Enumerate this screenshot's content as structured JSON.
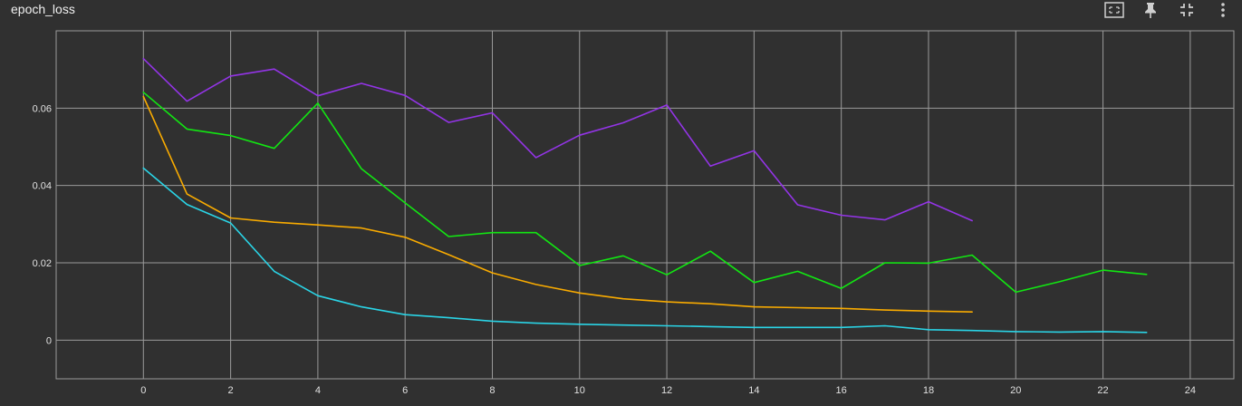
{
  "card": {
    "title": "epoch_loss"
  },
  "toolbar": {
    "icons": [
      "fit-domain-icon",
      "pin-icon",
      "collapse-icon",
      "more-vert-icon"
    ]
  },
  "colors": {
    "background": "#303030",
    "grid": "#9a9a9a",
    "series": [
      "#9334e6",
      "#12e612",
      "#f9ab00",
      "#2ad4e6"
    ]
  },
  "chart_data": {
    "type": "line",
    "title": "epoch_loss",
    "xlabel": "",
    "ylabel": "",
    "xlim": [
      -2,
      25
    ],
    "ylim": [
      -0.01,
      0.08
    ],
    "xticks": [
      0,
      2,
      4,
      6,
      8,
      10,
      12,
      14,
      16,
      18,
      20,
      22,
      24
    ],
    "yticks": [
      0,
      0.02,
      0.04,
      0.06
    ],
    "ytick_labels": [
      "0",
      "0.02",
      "0.04",
      "0.06"
    ],
    "grid": true,
    "series": [
      {
        "color": "#9334e6",
        "x": [
          0,
          1,
          2,
          3,
          4,
          5,
          6,
          7,
          8,
          9,
          10,
          11,
          12,
          13,
          14,
          15,
          16,
          17,
          18,
          19
        ],
        "y": [
          0.0728,
          0.0618,
          0.0683,
          0.0701,
          0.0632,
          0.0664,
          0.0633,
          0.0563,
          0.0588,
          0.0472,
          0.053,
          0.0562,
          0.0608,
          0.045,
          0.049,
          0.035,
          0.0323,
          0.0311,
          0.0358,
          0.0309
        ]
      },
      {
        "color": "#12e612",
        "x": [
          0,
          1,
          2,
          3,
          4,
          5,
          6,
          7,
          8,
          9,
          10,
          11,
          12,
          13,
          14,
          15,
          16,
          17,
          18,
          19,
          20,
          21,
          22,
          23
        ],
        "y": [
          0.0641,
          0.0546,
          0.0529,
          0.0496,
          0.0613,
          0.0443,
          0.0355,
          0.0268,
          0.0278,
          0.0278,
          0.0193,
          0.0218,
          0.0169,
          0.023,
          0.0149,
          0.0178,
          0.0134,
          0.02,
          0.0199,
          0.022,
          0.0124,
          0.0151,
          0.0181,
          0.017
        ]
      },
      {
        "color": "#f9ab00",
        "x": [
          0,
          1,
          2,
          3,
          4,
          5,
          6,
          7,
          8,
          9,
          10,
          11,
          12,
          13,
          14,
          15,
          16,
          17,
          18,
          19
        ],
        "y": [
          0.063,
          0.0378,
          0.0316,
          0.0305,
          0.0298,
          0.029,
          0.0266,
          0.0221,
          0.0174,
          0.0144,
          0.0122,
          0.0107,
          0.0099,
          0.0094,
          0.0086,
          0.0084,
          0.0082,
          0.0078,
          0.0075,
          0.0073
        ]
      },
      {
        "color": "#2ad4e6",
        "x": [
          0,
          1,
          2,
          3,
          4,
          5,
          6,
          7,
          8,
          9,
          10,
          11,
          12,
          13,
          14,
          15,
          16,
          17,
          18,
          19,
          20,
          21,
          22,
          23
        ],
        "y": [
          0.0445,
          0.0351,
          0.0303,
          0.0178,
          0.0115,
          0.0086,
          0.0066,
          0.0058,
          0.0049,
          0.0044,
          0.0041,
          0.0039,
          0.0037,
          0.0035,
          0.0033,
          0.0033,
          0.0033,
          0.0037,
          0.0027,
          0.0025,
          0.0022,
          0.0021,
          0.0022,
          0.002
        ]
      }
    ]
  }
}
